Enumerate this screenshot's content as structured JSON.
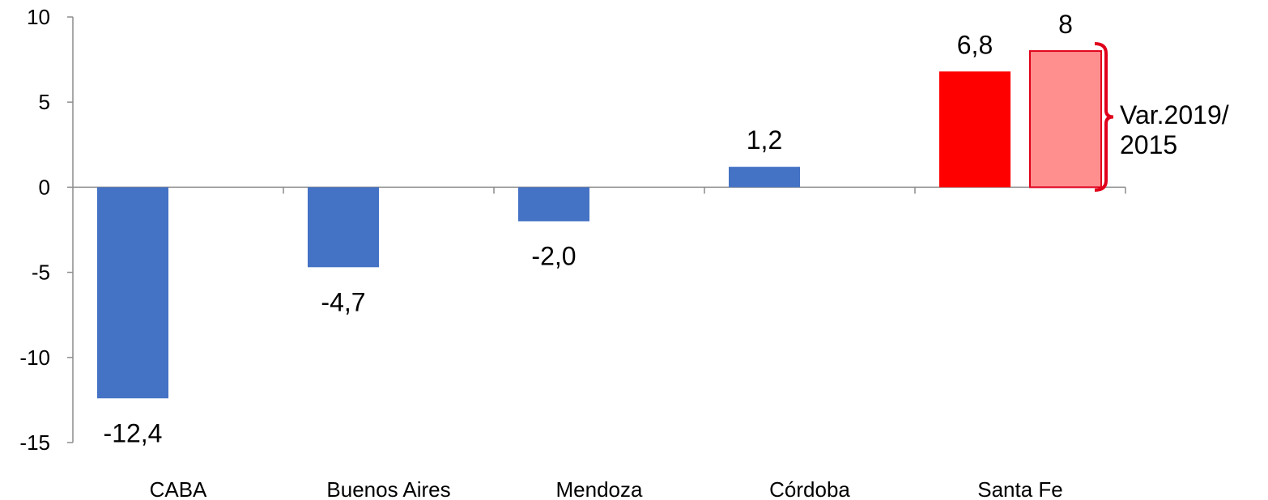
{
  "chart_data": {
    "type": "bar",
    "categories": [
      "CABA",
      "Buenos Aires",
      "Mendoza",
      "Córdoba",
      "Santa Fe"
    ],
    "series": [
      {
        "values": [
          -12.4,
          -4.7,
          -2.0,
          1.2,
          6.8
        ],
        "labels": [
          "-12,4",
          "-4,7",
          "-2,0",
          "1,2",
          "6,8"
        ],
        "colors": [
          "#4472C4",
          "#4472C4",
          "#4472C4",
          "#4472C4",
          "#FF0000"
        ]
      }
    ],
    "extra_bar": {
      "category": "Santa Fe",
      "value": 8,
      "label": "8",
      "color": "#FF8F8F",
      "border": "#E0001B"
    },
    "annotation": {
      "line1": "Var.2019/",
      "line2": "2015",
      "bracket_color": "#E0001B"
    },
    "ylim": [
      -15,
      10
    ],
    "yticks": [
      "10",
      "5",
      "0",
      "-5",
      "-10",
      "-15"
    ],
    "ytick_values": [
      10,
      5,
      0,
      -5,
      -10,
      -15
    ],
    "xlabel": "",
    "ylabel": "",
    "title": "",
    "grid": false,
    "legend": "none"
  }
}
